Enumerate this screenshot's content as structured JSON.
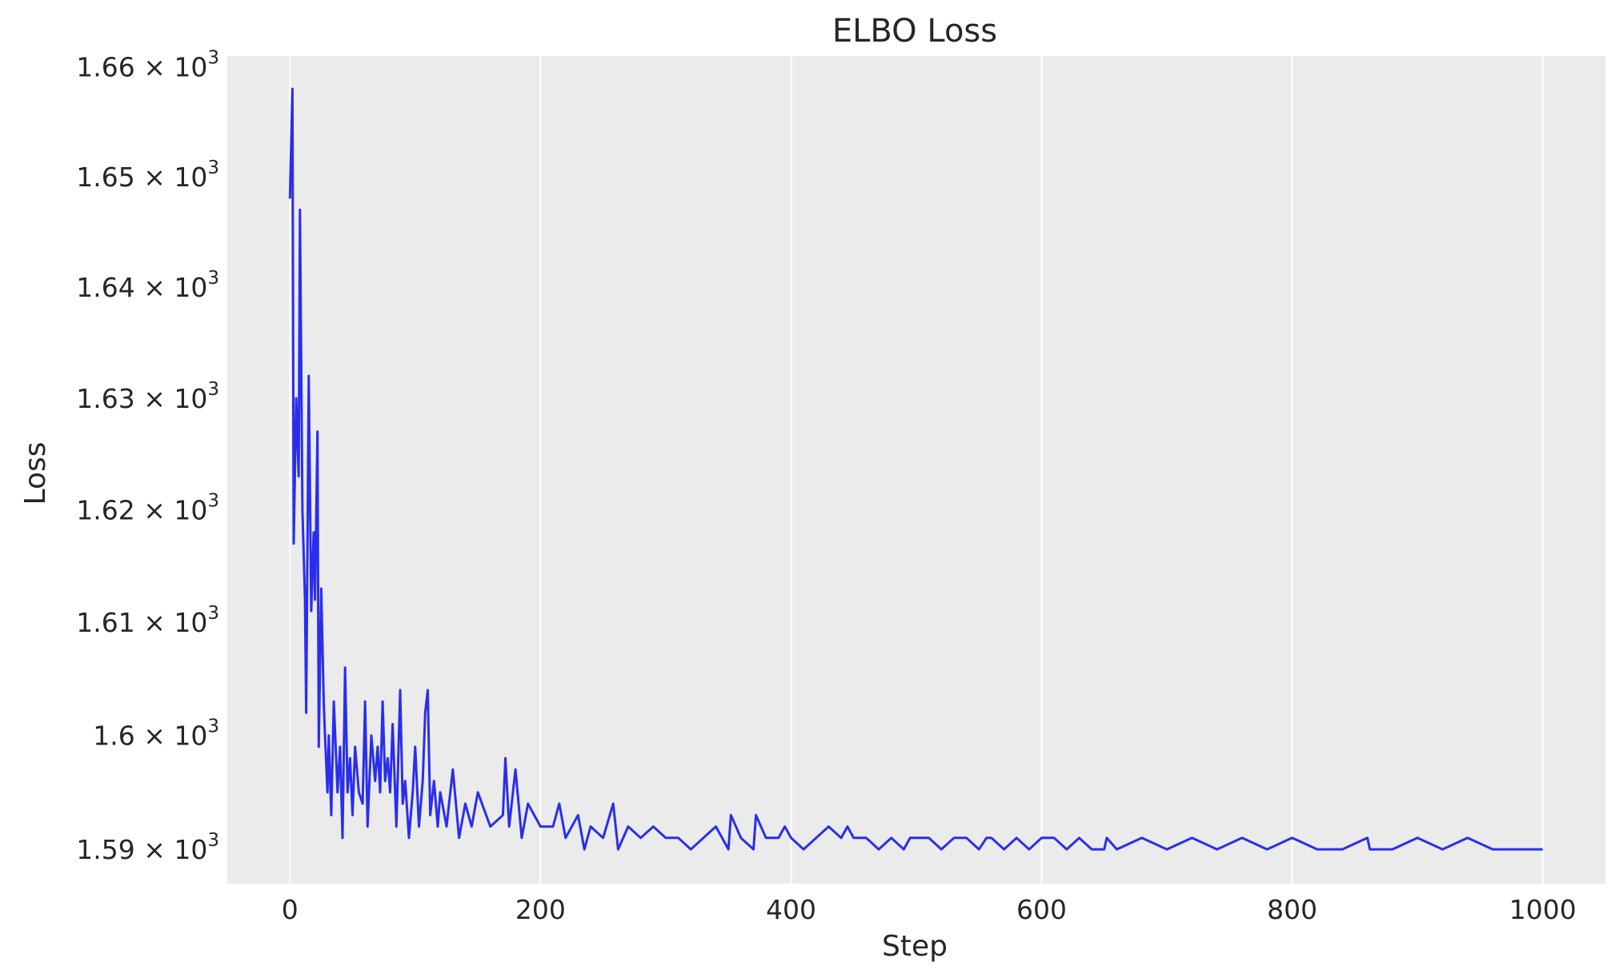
{
  "chart_data": {
    "type": "line",
    "title": "ELBO Loss",
    "xlabel": "Step",
    "ylabel": "Loss",
    "xlim": [
      -50,
      1050
    ],
    "ylim": [
      1587,
      1661
    ],
    "y_scale": "log",
    "grid": "vertical lines only",
    "x_ticks": [
      {
        "value": 0,
        "label": "0"
      },
      {
        "value": 200,
        "label": "200"
      },
      {
        "value": 400,
        "label": "400"
      },
      {
        "value": 600,
        "label": "600"
      },
      {
        "value": 800,
        "label": "800"
      },
      {
        "value": 1000,
        "label": "1000"
      }
    ],
    "y_ticks": [
      {
        "value": 1590,
        "mantissa": "1.59",
        "base": "× 10",
        "exp": "3"
      },
      {
        "value": 1600,
        "mantissa": "1.6",
        "base": "× 10",
        "exp": "3"
      },
      {
        "value": 1610,
        "mantissa": "1.61",
        "base": "× 10",
        "exp": "3"
      },
      {
        "value": 1620,
        "mantissa": "1.62",
        "base": "× 10",
        "exp": "3"
      },
      {
        "value": 1630,
        "mantissa": "1.63",
        "base": "× 10",
        "exp": "3"
      },
      {
        "value": 1640,
        "mantissa": "1.64",
        "base": "× 10",
        "exp": "3"
      },
      {
        "value": 1650,
        "mantissa": "1.65",
        "base": "× 10",
        "exp": "3"
      },
      {
        "value": 1660,
        "mantissa": "1.66",
        "base": "× 10",
        "exp": "3"
      }
    ],
    "series": [
      {
        "color": "#2a2eec",
        "x": [
          0,
          2,
          3,
          5,
          7,
          8,
          10,
          12,
          13,
          15,
          17,
          19,
          20,
          22,
          23,
          25,
          27,
          28,
          30,
          31,
          33,
          35,
          38,
          40,
          42,
          44,
          46,
          48,
          50,
          52,
          55,
          58,
          60,
          62,
          65,
          68,
          70,
          72,
          74,
          76,
          78,
          80,
          82,
          85,
          88,
          90,
          92,
          95,
          98,
          100,
          103,
          106,
          108,
          110,
          112,
          115,
          118,
          120,
          125,
          130,
          135,
          140,
          145,
          150,
          160,
          170,
          172,
          175,
          180,
          185,
          190,
          200,
          210,
          215,
          220,
          230,
          235,
          240,
          250,
          258,
          262,
          270,
          280,
          290,
          300,
          310,
          320,
          330,
          340,
          350,
          352,
          360,
          370,
          372,
          380,
          390,
          395,
          400,
          410,
          420,
          430,
          440,
          445,
          450,
          460,
          470,
          480,
          490,
          495,
          500,
          510,
          520,
          530,
          540,
          550,
          556,
          560,
          570,
          580,
          590,
          600,
          610,
          620,
          630,
          640,
          650,
          652,
          660,
          680,
          700,
          720,
          740,
          760,
          780,
          800,
          820,
          840,
          860,
          862,
          880,
          900,
          920,
          940,
          960,
          980,
          1000
        ],
        "y": [
          1648,
          1658,
          1617,
          1630,
          1623,
          1647,
          1620,
          1612,
          1602,
          1632,
          1611,
          1618,
          1612,
          1627,
          1599,
          1613,
          1603,
          1600,
          1595,
          1600,
          1593,
          1603,
          1595,
          1599,
          1591,
          1606,
          1595,
          1598,
          1593,
          1599,
          1595,
          1594,
          1603,
          1592,
          1600,
          1596,
          1599,
          1595,
          1603,
          1596,
          1598,
          1595,
          1601,
          1592,
          1604,
          1594,
          1596,
          1591,
          1595,
          1599,
          1592,
          1596,
          1602,
          1604,
          1593,
          1596,
          1592,
          1595,
          1592,
          1597,
          1591,
          1594,
          1592,
          1595,
          1592,
          1593,
          1598,
          1592,
          1597,
          1591,
          1594,
          1592,
          1592,
          1594,
          1591,
          1593,
          1590,
          1592,
          1591,
          1594,
          1590,
          1592,
          1591,
          1592,
          1591,
          1591,
          1590,
          1591,
          1592,
          1590,
          1593,
          1591,
          1590,
          1593,
          1591,
          1591,
          1592,
          1591,
          1590,
          1591,
          1592,
          1591,
          1592,
          1591,
          1591,
          1590,
          1591,
          1590,
          1591,
          1591,
          1591,
          1590,
          1591,
          1591,
          1590,
          1591,
          1591,
          1590,
          1591,
          1590,
          1591,
          1591,
          1590,
          1591,
          1590,
          1590,
          1591,
          1590,
          1591,
          1590,
          1591,
          1590,
          1591,
          1590,
          1591,
          1590,
          1590,
          1591,
          1590,
          1590,
          1591,
          1590,
          1591,
          1590,
          1590,
          1590
        ]
      }
    ]
  }
}
